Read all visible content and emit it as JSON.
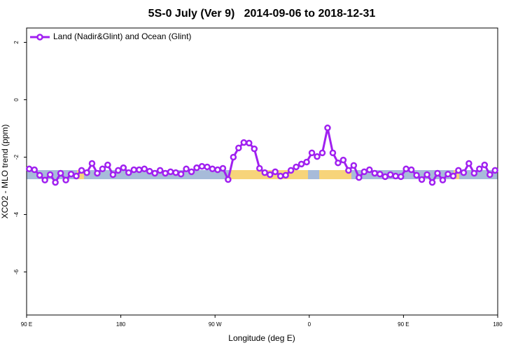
{
  "chart_data": {
    "type": "line",
    "title": "5S-0 July (Ver 9)   2014-09-06 to 2018-12-31",
    "x_label": "Longitude (deg E)",
    "y_label": "XCO2 - MLO trend (ppm)",
    "x": [
      92.5,
      97.5,
      102.5,
      107.5,
      112.5,
      117.5,
      122.5,
      127.5,
      132.5,
      137.5,
      142.5,
      147.5,
      152.5,
      157.5,
      162.5,
      167.5,
      172.5,
      177.5,
      182.5,
      187.5,
      192.5,
      197.5,
      202.5,
      207.5,
      212.5,
      217.5,
      222.5,
      227.5,
      232.5,
      237.5,
      242.5,
      247.5,
      252.5,
      257.5,
      262.5,
      267.5,
      272.5,
      277.5,
      282.5,
      287.5,
      292.5,
      297.5,
      302.5,
      307.5,
      312.5,
      317.5,
      322.5,
      327.5,
      332.5,
      337.5,
      342.5,
      347.5,
      352.5,
      357.5,
      362.5,
      367.5,
      372.5,
      377.5,
      382.5,
      387.5,
      392.5,
      397.5,
      402.5,
      407.5,
      412.5,
      417.5,
      422.5,
      427.5,
      432.5,
      437.5,
      442.5,
      447.5,
      452.5,
      457.5,
      462.5,
      467.5,
      472.5,
      477.5,
      482.5,
      487.5,
      492.5,
      497.5,
      502.5,
      507.5,
      512.5,
      517.5,
      522.5,
      527.5,
      532.5,
      537.5
    ],
    "series": [
      {
        "name": "Land (Nadir&Glint) and Ocean (Glint)",
        "color": "#a020f0",
        "values": [
          -2.41,
          -2.44,
          -2.63,
          -2.8,
          -2.61,
          -2.88,
          -2.56,
          -2.8,
          -2.59,
          -2.66,
          -2.46,
          -2.54,
          -2.22,
          -2.56,
          -2.41,
          -2.27,
          -2.61,
          -2.46,
          -2.37,
          -2.54,
          -2.44,
          -2.44,
          -2.41,
          -2.49,
          -2.56,
          -2.46,
          -2.56,
          -2.51,
          -2.54,
          -2.59,
          -2.41,
          -2.51,
          -2.37,
          -2.32,
          -2.34,
          -2.41,
          -2.44,
          -2.39,
          -2.78,
          -2.0,
          -1.68,
          -1.49,
          -1.51,
          -1.71,
          -2.39,
          -2.54,
          -2.61,
          -2.51,
          -2.66,
          -2.63,
          -2.46,
          -2.34,
          -2.24,
          -2.17,
          -1.85,
          -1.98,
          -1.85,
          -0.98,
          -1.85,
          -2.2,
          -2.1,
          -2.46,
          -2.29,
          -2.71,
          -2.51,
          -2.44,
          -2.56,
          -2.59,
          -2.68,
          -2.61,
          -2.66,
          -2.68,
          -2.41,
          -2.44,
          -2.63,
          -2.78,
          -2.61,
          -2.88,
          -2.56,
          -2.8,
          -2.59,
          -2.66,
          -2.46,
          -2.54,
          -2.22,
          -2.56,
          -2.41,
          -2.27,
          -2.61,
          -2.46
        ]
      }
    ],
    "xlim": [
      90,
      540
    ],
    "xticks": [
      {
        "value": 90,
        "label": "90 E"
      },
      180,
      {
        "value": 270,
        "label": "90 W"
      },
      {
        "value": 360,
        "label": "0"
      },
      {
        "value": 450,
        "label": "90 E"
      },
      {
        "value": 540,
        "label": "180"
      }
    ],
    "ylim": [
      -7.5,
      2.5
    ],
    "yticks": [
      2,
      0,
      -2,
      -4,
      -6
    ],
    "legend": "top-left"
  }
}
